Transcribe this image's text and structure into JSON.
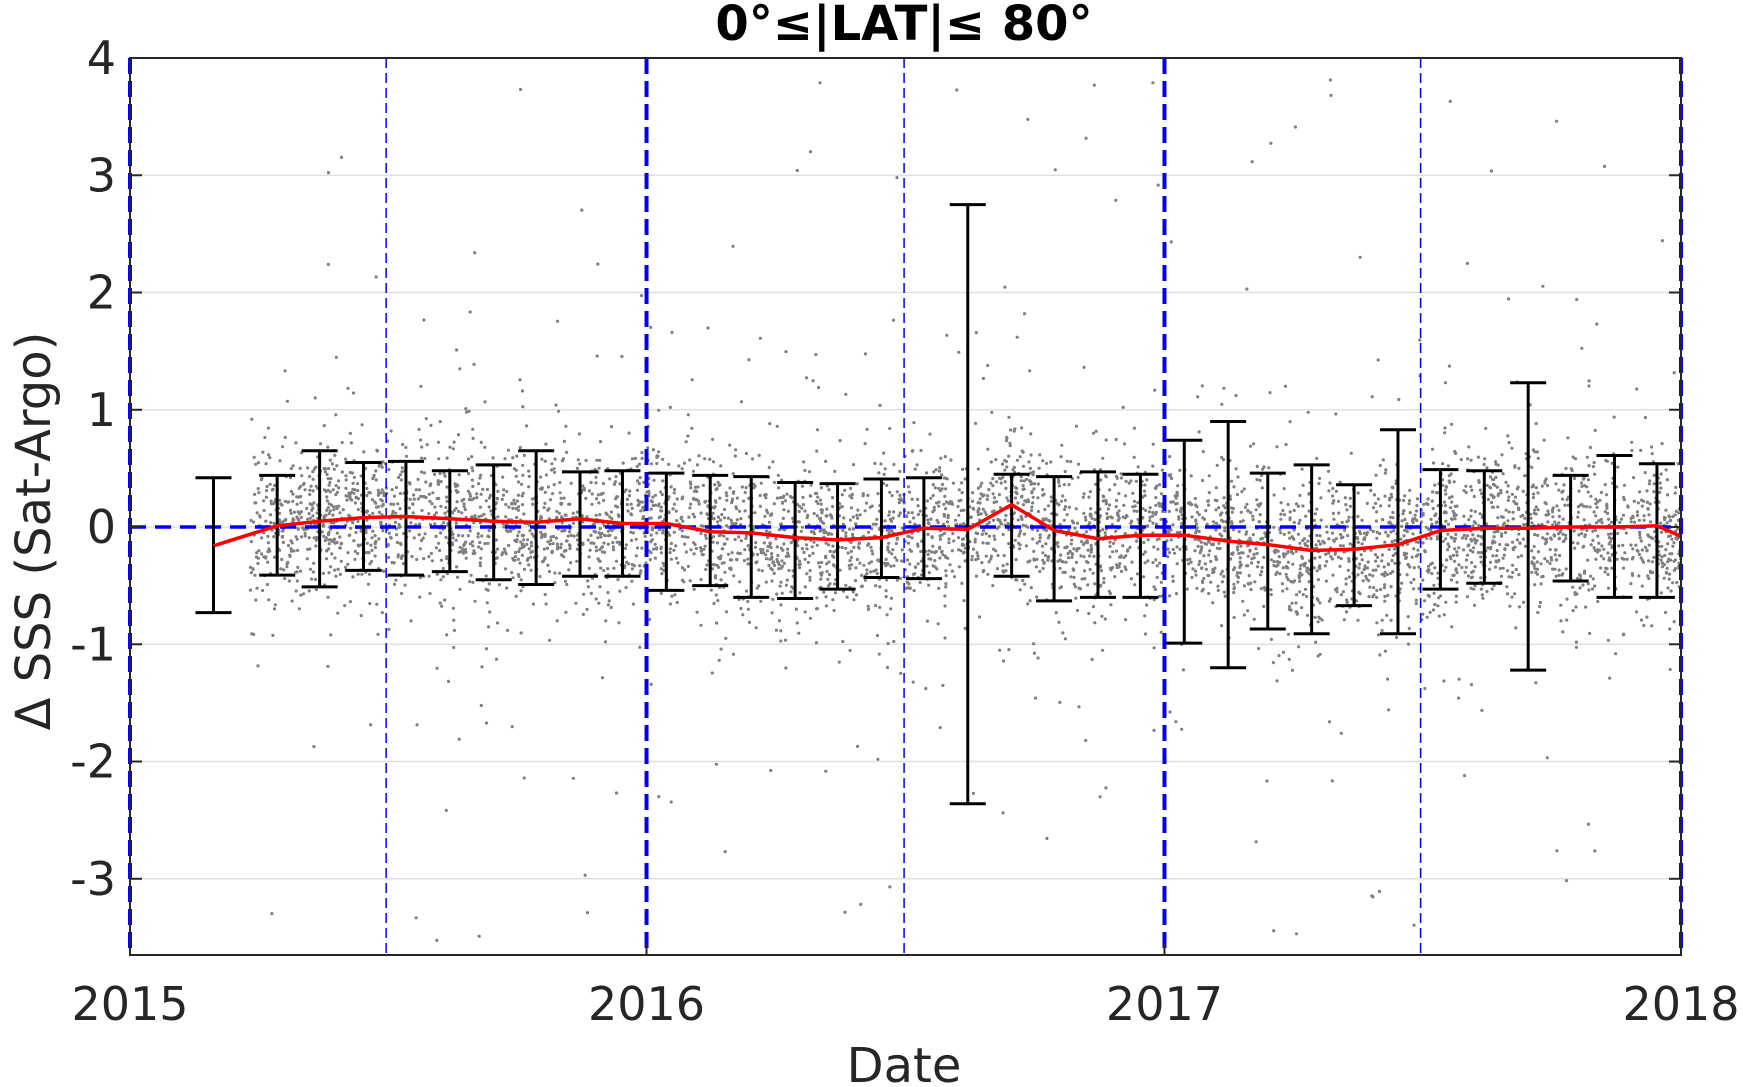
{
  "chart_data": {
    "type": "scatter",
    "title": "0°≤|LAT|≤ 80°",
    "xlabel": "Date",
    "ylabel": "Δ SSS (Sat-Argo)",
    "x_axis": "date",
    "xlim": [
      "2015-01-01",
      "2018-01-01"
    ],
    "ylim": [
      -3.65,
      4
    ],
    "xticks": [
      "2015",
      "2016",
      "2017",
      "2018"
    ],
    "yticks": [
      -3,
      -2,
      -1,
      0,
      1,
      2,
      3,
      4
    ],
    "grid": "horizontal",
    "legend": "none",
    "colors": {
      "points": "#808080",
      "mean_line": "#ff0000",
      "error_bars": "#000000",
      "zero_line": "#0000ff",
      "year_lines": "#0000ff",
      "half_year_lines": "#0000ff",
      "grid": "#e0e0e0"
    },
    "year_lines": [
      "2015-01-01",
      "2016-01-01",
      "2017-01-01",
      "2018-01-01"
    ],
    "half_year_lines": [
      "2015-07-01",
      "2016-07-01",
      "2017-07-01"
    ],
    "zero_line": 0,
    "scatter_cloud": {
      "start": "2015-03-27",
      "end": "2018-01-01",
      "core_range": [
        -0.6,
        0.6
      ],
      "outlier_range": [
        -3.6,
        3.85
      ]
    },
    "series": [
      {
        "type": "line",
        "x": [
          "2015-03-01",
          "2015-04-15",
          "2015-05-15",
          "2015-06-15",
          "2015-07-15",
          "2015-08-15",
          "2015-09-15",
          "2015-10-15",
          "2015-11-15",
          "2015-12-15",
          "2016-01-15",
          "2016-02-15",
          "2016-03-15",
          "2016-04-15",
          "2016-05-15",
          "2016-06-15",
          "2016-07-15",
          "2016-08-15",
          "2016-09-15",
          "2016-10-15",
          "2016-11-15",
          "2016-12-15",
          "2017-01-15",
          "2017-02-15",
          "2017-03-15",
          "2017-04-15",
          "2017-05-15",
          "2017-06-15",
          "2017-07-15",
          "2017-08-15",
          "2017-09-15",
          "2017-10-15",
          "2017-11-15",
          "2017-12-15",
          "2018-01-01"
        ],
        "y": [
          -0.16,
          0.01,
          0.05,
          0.08,
          0.09,
          0.07,
          0.05,
          0.04,
          0.07,
          0.03,
          0.03,
          -0.04,
          -0.05,
          -0.09,
          -0.11,
          -0.09,
          -0.01,
          -0.02,
          0.19,
          -0.03,
          -0.1,
          -0.07,
          -0.07,
          -0.12,
          -0.15,
          -0.2,
          -0.19,
          -0.15,
          -0.03,
          -0.01,
          -0.01,
          0.0,
          0.0,
          0.01,
          -0.08
        ]
      },
      {
        "type": "errorbar",
        "x": [
          "2015-03-01",
          "2015-04-15",
          "2015-05-15",
          "2015-06-15",
          "2015-07-15",
          "2015-08-15",
          "2015-09-15",
          "2015-10-15",
          "2015-11-15",
          "2015-12-15",
          "2016-01-15",
          "2016-02-15",
          "2016-03-15",
          "2016-04-15",
          "2016-05-15",
          "2016-06-15",
          "2016-07-15",
          "2016-08-15",
          "2016-09-15",
          "2016-10-15",
          "2016-11-15",
          "2016-12-15",
          "2017-01-15",
          "2017-02-15",
          "2017-03-15",
          "2017-04-15",
          "2017-05-15",
          "2017-06-15",
          "2017-07-15",
          "2017-08-15",
          "2017-09-15",
          "2017-10-15",
          "2017-11-15",
          "2017-12-15"
        ],
        "upper": [
          0.42,
          0.44,
          0.65,
          0.55,
          0.56,
          0.48,
          0.53,
          0.65,
          0.47,
          0.48,
          0.46,
          0.44,
          0.43,
          0.38,
          0.37,
          0.41,
          0.42,
          2.75,
          0.45,
          0.43,
          0.47,
          0.45,
          0.74,
          0.9,
          0.46,
          0.53,
          0.36,
          0.83,
          0.49,
          0.48,
          1.23,
          0.44,
          0.61,
          0.54
        ],
        "lower": [
          -0.73,
          -0.41,
          -0.51,
          -0.37,
          -0.41,
          -0.38,
          -0.45,
          -0.49,
          -0.42,
          -0.42,
          -0.54,
          -0.5,
          -0.6,
          -0.61,
          -0.53,
          -0.43,
          -0.44,
          -2.36,
          -0.42,
          -0.63,
          -0.6,
          -0.6,
          -0.99,
          -1.2,
          -0.87,
          -0.91,
          -0.67,
          -0.91,
          -0.53,
          -0.48,
          -1.22,
          -0.46,
          -0.6,
          -0.6
        ]
      }
    ]
  }
}
